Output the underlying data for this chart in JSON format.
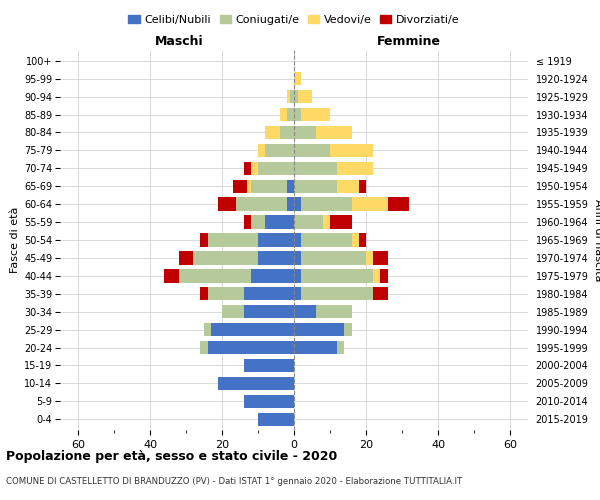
{
  "age_groups": [
    "0-4",
    "5-9",
    "10-14",
    "15-19",
    "20-24",
    "25-29",
    "30-34",
    "35-39",
    "40-44",
    "45-49",
    "50-54",
    "55-59",
    "60-64",
    "65-69",
    "70-74",
    "75-79",
    "80-84",
    "85-89",
    "90-94",
    "95-99",
    "100+"
  ],
  "birth_years": [
    "2015-2019",
    "2010-2014",
    "2005-2009",
    "2000-2004",
    "1995-1999",
    "1990-1994",
    "1985-1989",
    "1980-1984",
    "1975-1979",
    "1970-1974",
    "1965-1969",
    "1960-1964",
    "1955-1959",
    "1950-1954",
    "1945-1949",
    "1940-1944",
    "1935-1939",
    "1930-1934",
    "1925-1929",
    "1920-1924",
    "≤ 1919"
  ],
  "maschi": {
    "celibi": [
      10,
      14,
      21,
      14,
      24,
      23,
      14,
      14,
      12,
      10,
      10,
      8,
      2,
      2,
      0,
      0,
      0,
      0,
      0,
      0,
      0
    ],
    "coniugati": [
      0,
      0,
      0,
      0,
      2,
      2,
      6,
      10,
      20,
      18,
      14,
      4,
      14,
      10,
      10,
      8,
      4,
      2,
      1,
      0,
      0
    ],
    "vedovi": [
      0,
      0,
      0,
      0,
      0,
      0,
      0,
      0,
      0,
      0,
      0,
      0,
      0,
      1,
      2,
      2,
      4,
      2,
      1,
      0,
      0
    ],
    "divorziati": [
      0,
      0,
      0,
      0,
      0,
      0,
      0,
      2,
      4,
      4,
      2,
      2,
      5,
      4,
      2,
      0,
      0,
      0,
      0,
      0,
      0
    ]
  },
  "femmine": {
    "nubili": [
      0,
      0,
      0,
      0,
      12,
      14,
      6,
      2,
      2,
      2,
      2,
      0,
      2,
      0,
      0,
      0,
      0,
      0,
      0,
      0,
      0
    ],
    "coniugate": [
      0,
      0,
      0,
      0,
      2,
      2,
      10,
      20,
      20,
      18,
      14,
      8,
      14,
      12,
      12,
      10,
      6,
      2,
      1,
      0,
      0
    ],
    "vedove": [
      0,
      0,
      0,
      0,
      0,
      0,
      0,
      0,
      2,
      2,
      2,
      2,
      10,
      6,
      10,
      12,
      10,
      8,
      4,
      2,
      0
    ],
    "divorziate": [
      0,
      0,
      0,
      0,
      0,
      0,
      0,
      4,
      2,
      4,
      2,
      6,
      6,
      2,
      0,
      0,
      0,
      0,
      0,
      0,
      0
    ]
  },
  "colors": {
    "celibi": "#4472c4",
    "coniugati": "#b5c99a",
    "vedovi": "#ffd966",
    "divorziati": "#c00000"
  },
  "xlim": 65,
  "xticks": [
    0,
    20,
    40,
    60
  ],
  "title": "Popolazione per età, sesso e stato civile - 2020",
  "subtitle": "COMUNE DI CASTELLETTO DI BRANDUZZO (PV) - Dati ISTAT 1° gennaio 2020 - Elaborazione TUTTITALIA.IT",
  "ylabel_left": "Fasce di età",
  "ylabel_right": "Anni di nascita",
  "xlabel_left": "Maschi",
  "xlabel_right": "Femmine"
}
